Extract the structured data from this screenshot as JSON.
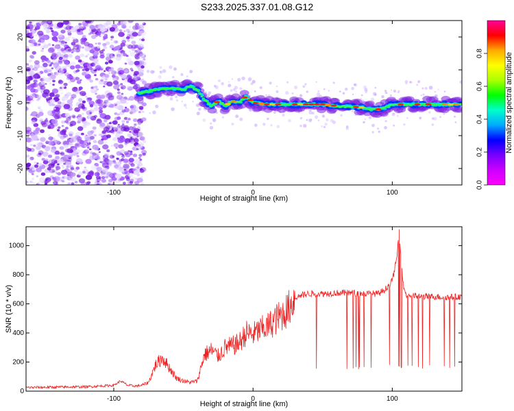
{
  "title": "S233.2025.337.01.08.G12",
  "colors": {
    "snr_line": "#ee2222",
    "spectrum_low": "#7b1fe0",
    "spectrum_high": "#dd0000"
  },
  "chart_data": [
    {
      "type": "heatmap",
      "xlabel": "Height of straight line (km)",
      "ylabel": "Frequency (Hz)",
      "xlim": [
        -163,
        150
      ],
      "ylim": [
        -25,
        25
      ],
      "xticks": [
        -100,
        0,
        100
      ],
      "yticks": [
        -20,
        -10,
        0,
        10,
        20
      ],
      "colorbar": {
        "label": "Normalized spectral amplitude",
        "range": [
          0,
          1
        ],
        "ticks": [
          "0.0",
          "0.2",
          "0.4",
          "0.6",
          "0.8"
        ],
        "stops": [
          "#ff00ff",
          "#cc00ff",
          "#7700ff",
          "#0000ff",
          "#00aaff",
          "#00ffcc",
          "#00ff00",
          "#aaff00",
          "#ffff00",
          "#ffaa00",
          "#ff0000",
          "#ff0099"
        ]
      },
      "ridge": {
        "x": [
          -80,
          -70,
          -60,
          -50,
          -45,
          -40,
          -35,
          -30,
          -25,
          -20,
          -15,
          -10,
          -5,
          0,
          10,
          20,
          30,
          40,
          50,
          60,
          70,
          80,
          85,
          90,
          95,
          100,
          105,
          110,
          120,
          130,
          140,
          150
        ],
        "y": [
          3,
          4,
          4.5,
          4,
          5,
          4,
          1,
          -1,
          0.5,
          -1,
          0.5,
          0,
          2,
          0,
          -0.5,
          -0.5,
          -0.5,
          -0.5,
          -0.5,
          -1,
          -1.2,
          -1.5,
          -2,
          -2,
          -1.5,
          -0.5,
          -0.5,
          -0.5,
          -0.5,
          -0.5,
          -0.5,
          -0.5
        ]
      }
    },
    {
      "type": "line",
      "xlabel": "Height of straight line (km)",
      "ylabel": "SNR (10 * v/v)",
      "xlim": [
        -163,
        150
      ],
      "ylim": [
        0,
        1130
      ],
      "xticks": [
        -100,
        0,
        100
      ],
      "yticks": [
        0,
        200,
        400,
        600,
        800,
        1000
      ],
      "series": [
        {
          "x": [
            -163,
            -120,
            -100,
            -95,
            -90,
            -85,
            -80,
            -75,
            -70,
            -65,
            -60,
            -55,
            -50,
            -45,
            -40,
            -35,
            -30,
            -25,
            -20,
            -15,
            -10,
            -5,
            0,
            5,
            10,
            15,
            20,
            25,
            28,
            30,
            35,
            40,
            50,
            60,
            70,
            80,
            90,
            95,
            100,
            103,
            105,
            108,
            110,
            120,
            130,
            140,
            150
          ],
          "y": [
            25,
            30,
            40,
            70,
            40,
            35,
            40,
            60,
            180,
            230,
            160,
            90,
            70,
            60,
            70,
            250,
            280,
            240,
            300,
            310,
            330,
            400,
            390,
            420,
            440,
            480,
            520,
            560,
            610,
            640,
            660,
            670,
            670,
            675,
            675,
            670,
            670,
            700,
            760,
            900,
            1100,
            720,
            660,
            650,
            650,
            645,
            650
          ]
        }
      ]
    }
  ]
}
